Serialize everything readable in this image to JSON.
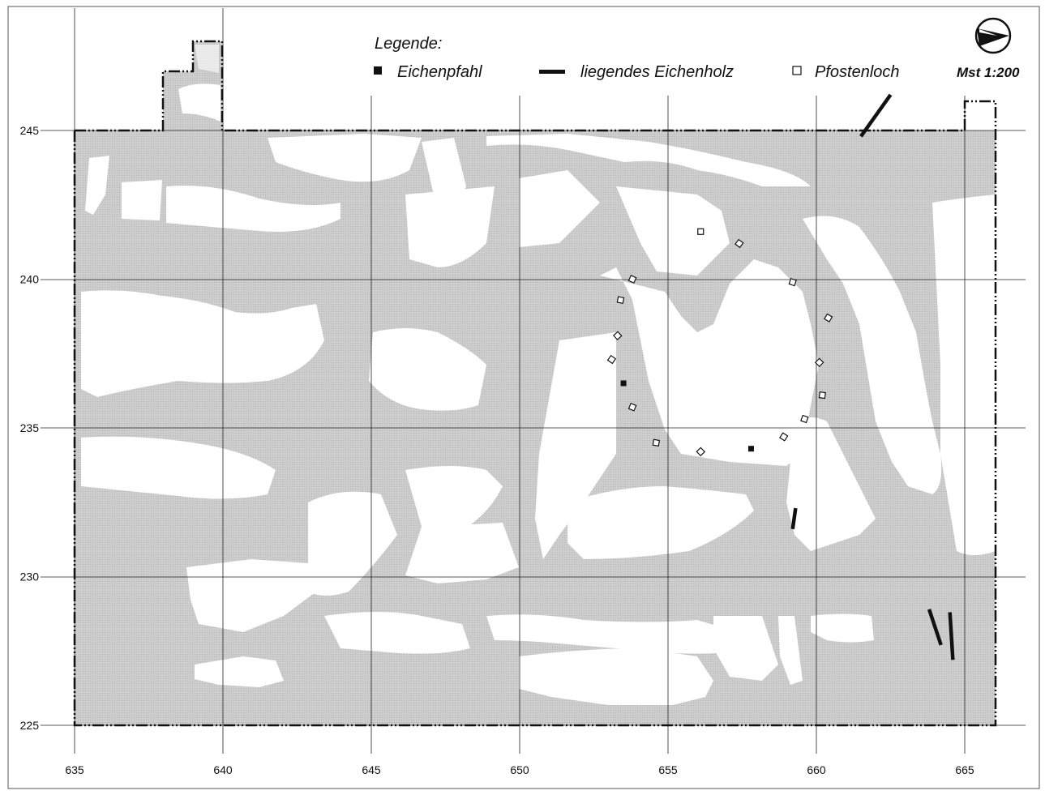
{
  "legend": {
    "title": "Legende:",
    "items": [
      {
        "symbol": "filled-square",
        "label": "Eichenpfahl"
      },
      {
        "symbol": "thick-bar",
        "label": "liegendes Eichenholz"
      },
      {
        "symbol": "open-square",
        "label": "Pfostenloch"
      }
    ]
  },
  "scale_label": "Mst 1:200",
  "icons": {
    "north_arrow": "north-arrow-icon"
  },
  "colors": {
    "sediment_fill": "#c8c8c8",
    "frame": "#222222",
    "grid": "#333333",
    "background": "#ffffff"
  },
  "chart_data": {
    "type": "map",
    "x_axis": {
      "min": 635,
      "max": 665,
      "ticks": [
        635,
        640,
        645,
        650,
        655,
        660,
        665
      ]
    },
    "y_axis": {
      "min": 225,
      "max": 245,
      "ticks": [
        245,
        240,
        235,
        230,
        225
      ]
    },
    "grid": true,
    "legend_position": "top",
    "postholes": [
      {
        "x": 656.1,
        "y": 241.6
      },
      {
        "x": 657.4,
        "y": 241.2
      },
      {
        "x": 653.8,
        "y": 240.0
      },
      {
        "x": 653.4,
        "y": 239.3
      },
      {
        "x": 653.3,
        "y": 238.1
      },
      {
        "x": 653.1,
        "y": 237.3
      },
      {
        "x": 653.8,
        "y": 235.7
      },
      {
        "x": 654.6,
        "y": 234.5
      },
      {
        "x": 656.1,
        "y": 234.2
      },
      {
        "x": 658.9,
        "y": 234.7
      },
      {
        "x": 659.6,
        "y": 235.3
      },
      {
        "x": 660.2,
        "y": 236.1
      },
      {
        "x": 660.1,
        "y": 237.2
      },
      {
        "x": 660.4,
        "y": 238.7
      },
      {
        "x": 659.2,
        "y": 239.9
      }
    ],
    "oak_posts": [
      {
        "x": 653.5,
        "y": 236.5
      },
      {
        "x": 657.8,
        "y": 234.3
      }
    ],
    "oak_timbers": [
      {
        "x1": 661.5,
        "y1": 244.8,
        "x2": 662.5,
        "y2": 246.2
      },
      {
        "x1": 659.3,
        "y1": 232.3,
        "x2": 659.2,
        "y2": 231.6
      },
      {
        "x1": 663.8,
        "y1": 228.9,
        "x2": 664.2,
        "y2": 227.7
      },
      {
        "x1": 664.5,
        "y1": 228.8,
        "x2": 664.6,
        "y2": 227.2
      }
    ]
  }
}
